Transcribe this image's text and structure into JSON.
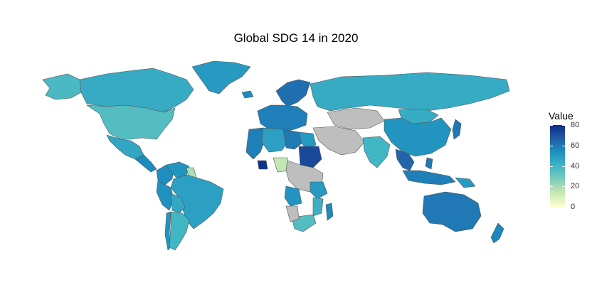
{
  "title": "Global SDG 14 in 2020",
  "legend": {
    "title": "Value",
    "ticks": [
      80,
      60,
      40,
      20,
      0
    ],
    "min": 0,
    "max": 80,
    "colors": [
      "#ffffcc",
      "#c7e9b4",
      "#7fcdbb",
      "#41b6c4",
      "#1d91c0",
      "#225ea8",
      "#0c2c84"
    ]
  },
  "map": {
    "no_data_color": "#bebebe",
    "border_color": "#555555",
    "regions": [
      {
        "name": "Canada",
        "value": 44
      },
      {
        "name": "Alaska",
        "value": 38
      },
      {
        "name": "Greenland",
        "value": 50
      },
      {
        "name": "United States",
        "value": 36
      },
      {
        "name": "Mexico",
        "value": 46
      },
      {
        "name": "Central America",
        "value": 55
      },
      {
        "name": "Colombia",
        "value": 54
      },
      {
        "name": "Venezuela",
        "value": 52
      },
      {
        "name": "Guyana",
        "value": 18
      },
      {
        "name": "Brazil",
        "value": 48
      },
      {
        "name": "Peru",
        "value": 53
      },
      {
        "name": "Bolivia",
        "value": 45
      },
      {
        "name": "Chile",
        "value": 52
      },
      {
        "name": "Argentina",
        "value": 40
      },
      {
        "name": "Iceland",
        "value": 55
      },
      {
        "name": "Scandinavia",
        "value": 62
      },
      {
        "name": "Western Europe",
        "value": 58
      },
      {
        "name": "Russia",
        "value": 44
      },
      {
        "name": "Mongolia",
        "value": 44
      },
      {
        "name": "China",
        "value": 52
      },
      {
        "name": "Kazakhstan",
        "value": null
      },
      {
        "name": "Middle East",
        "value": null
      },
      {
        "name": "India",
        "value": 40
      },
      {
        "name": "Southeast Asia",
        "value": 65
      },
      {
        "name": "Japan",
        "value": 60
      },
      {
        "name": "Indonesia",
        "value": 58
      },
      {
        "name": "Philippines",
        "value": 60
      },
      {
        "name": "Australia",
        "value": 60
      },
      {
        "name": "New Zealand",
        "value": 56
      },
      {
        "name": "Papua New Guinea",
        "value": 50
      },
      {
        "name": "Morocco / West Africa",
        "value": 58
      },
      {
        "name": "Algeria",
        "value": 48
      },
      {
        "name": "Libya",
        "value": 60
      },
      {
        "name": "Egypt",
        "value": 50
      },
      {
        "name": "Sudan",
        "value": 72
      },
      {
        "name": "Ivory Coast",
        "value": 78
      },
      {
        "name": "Nigeria",
        "value": 14
      },
      {
        "name": "Central Africa",
        "value": null
      },
      {
        "name": "Angola",
        "value": 52
      },
      {
        "name": "Tanzania",
        "value": 50
      },
      {
        "name": "Mozambique",
        "value": 42
      },
      {
        "name": "South Africa",
        "value": 36
      },
      {
        "name": "Namibia",
        "value": null
      },
      {
        "name": "Madagascar",
        "value": 55
      }
    ]
  }
}
